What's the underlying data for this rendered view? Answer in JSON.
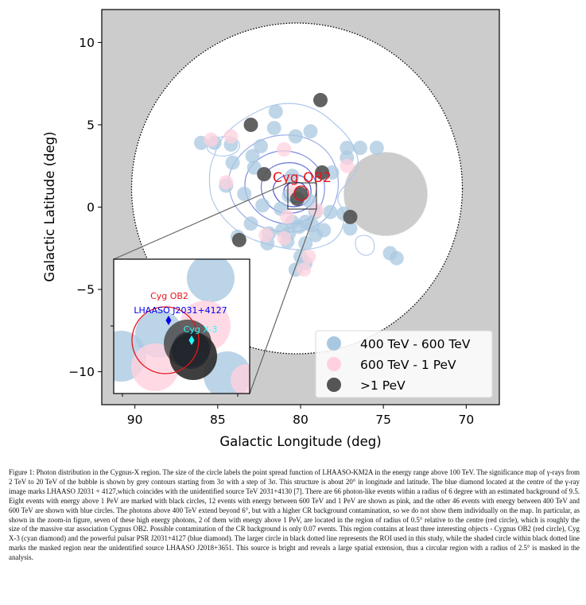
{
  "chart_data": {
    "type": "scatter",
    "title": "",
    "xlabel": "Galactic Longitude (deg)",
    "ylabel": "Galactic Latitude (deg)",
    "xlim": [
      92,
      68
    ],
    "ylim": [
      -12,
      12
    ],
    "x_ticks": [
      90,
      85,
      80,
      75,
      70
    ],
    "y_ticks": [
      10,
      5,
      0,
      -5,
      -10
    ],
    "x_inverted": true,
    "grid": false,
    "legend_position": "bottom-right",
    "background_color": "#cccccc",
    "series": [
      {
        "name": "400 TeV - 600 TeV",
        "color": "#a9c8e0",
        "points": [
          [
            79.4,
            4.6
          ],
          [
            81.5,
            5.8
          ],
          [
            81.6,
            4.8
          ],
          [
            80.3,
            4.3
          ],
          [
            86.0,
            3.9
          ],
          [
            85.2,
            3.9
          ],
          [
            84.2,
            3.8
          ],
          [
            82.4,
            3.7
          ],
          [
            77.2,
            3.6
          ],
          [
            76.4,
            3.6
          ],
          [
            75.4,
            3.6
          ],
          [
            82.9,
            3.1
          ],
          [
            77.2,
            3.0
          ],
          [
            84.1,
            2.7
          ],
          [
            82.8,
            2.4
          ],
          [
            78.1,
            2.1
          ],
          [
            80.5,
            1.9
          ],
          [
            84.5,
            1.3
          ],
          [
            83.4,
            0.8
          ],
          [
            80.7,
            0.7
          ],
          [
            79.5,
            0.4
          ],
          [
            82.3,
            0.1
          ],
          [
            81.2,
            -0.1
          ],
          [
            79.1,
            -0.3
          ],
          [
            78.2,
            -0.3
          ],
          [
            77.4,
            -0.4
          ],
          [
            80.5,
            -0.9
          ],
          [
            79.7,
            -0.9
          ],
          [
            83.0,
            -1.0
          ],
          [
            80.1,
            -1.2
          ],
          [
            79.3,
            -1.1
          ],
          [
            81.1,
            -1.4
          ],
          [
            81.9,
            -1.6
          ],
          [
            80.7,
            -1.6
          ],
          [
            79.1,
            -1.7
          ],
          [
            78.6,
            -1.4
          ],
          [
            77.0,
            -1.3
          ],
          [
            83.8,
            -1.8
          ],
          [
            82.0,
            -2.2
          ],
          [
            80.8,
            -2.1
          ],
          [
            79.7,
            -2.2
          ],
          [
            74.6,
            -2.8
          ],
          [
            74.2,
            -3.1
          ],
          [
            80.0,
            -3.0
          ],
          [
            79.7,
            -3.4
          ],
          [
            80.3,
            -3.8
          ]
        ]
      },
      {
        "name": "600 TeV - 1 PeV",
        "color": "#ffd1de",
        "points": [
          [
            85.4,
            4.1
          ],
          [
            84.2,
            4.3
          ],
          [
            81.0,
            3.5
          ],
          [
            77.2,
            2.5
          ],
          [
            80.4,
            1.0
          ],
          [
            84.5,
            1.5
          ],
          [
            79.0,
            -0.2
          ],
          [
            80.8,
            -0.6
          ],
          [
            82.1,
            -1.7
          ],
          [
            81.0,
            -1.9
          ],
          [
            79.5,
            -3.0
          ],
          [
            79.8,
            -3.8
          ]
        ]
      },
      {
        "name": ">1 PeV",
        "color": "#555555",
        "points": [
          [
            78.8,
            6.5
          ],
          [
            83.0,
            5.0
          ],
          [
            82.2,
            2.0
          ],
          [
            78.7,
            2.1
          ],
          [
            80.0,
            0.8
          ],
          [
            80.2,
            0.5
          ],
          [
            77.0,
            -0.6
          ],
          [
            83.7,
            -2.0
          ]
        ]
      }
    ],
    "annotations": [
      "Cyg OB2"
    ],
    "inset": {
      "xlim": [
        81.4,
        79.5
      ],
      "ylim": [
        -0.2,
        1.4
      ],
      "labels": [
        "Cyg OB2",
        "LHAASO J2031+4127",
        "Cyg X-3"
      ],
      "cyg_ob2": [
        80.23,
        0.71
      ],
      "lhaaso_j2031": [
        80.14,
        0.92
      ],
      "cyg_x3": [
        79.84,
        0.7
      ]
    },
    "regions": {
      "roi_center": [
        79.7,
        1.2
      ],
      "roi_radius_deg": 10,
      "mask_center": [
        75.2,
        0.8
      ],
      "mask_radius_deg": 2.5
    }
  },
  "caption": "Figure 1: Photon distribution in the Cygnus-X region. The size of the circle labels the point spread function of LHAASO-KM2A in the energy range above 100 TeV. The significance map of γ-rays from 2 TeV to 20 TeV of the bubble is shown by grey contours starting from 3σ with a step of 3σ. This structure is about 20° in longitude and latitude. The blue diamond located at the centre of the γ-ray image marks LHAASO J2031 + 4127,which coincides with the unidentified source TeV 2031+4130 [7]. There are 66 photon-like events within a radius of 6 degree with an estimated background of 9.5. Eight events with energy above 1 PeV are marked with black circles, 12 events with energy between 600 TeV and 1 PeV are shown as pink, and the other 46 events with energy between 400 TeV and 600 TeV are shown with blue circles. The photons above 400 TeV extend beyond 6°, but with a higher CR background contamination, so we do not show them individually on the map. In particular, as shown in the zoom-in figure, seven of these high energy photons, 2 of them with energy above 1 PeV, are located in the region of radius of 0.5° relative to the centre (red circle), which is roughly the size of the massive star association Cygnus OB2. Possible contamination of the CR background is only 0.07 events. This region contains at least three interesting objects - Cygnus OB2 (red circle), Cyg X-3 (cyan diamond) and the powerful pulsar PSR J2031+4127 (blue diamond). The larger circle in black dotted line represents the ROI used in this study, while the shaded circle within black dotted line marks the masked region near the unidentified source LHAASO J2018+3651. This source is bright and reveals a large spatial extension, thus a circular region with a radius of 2.5° is masked in the analysis."
}
